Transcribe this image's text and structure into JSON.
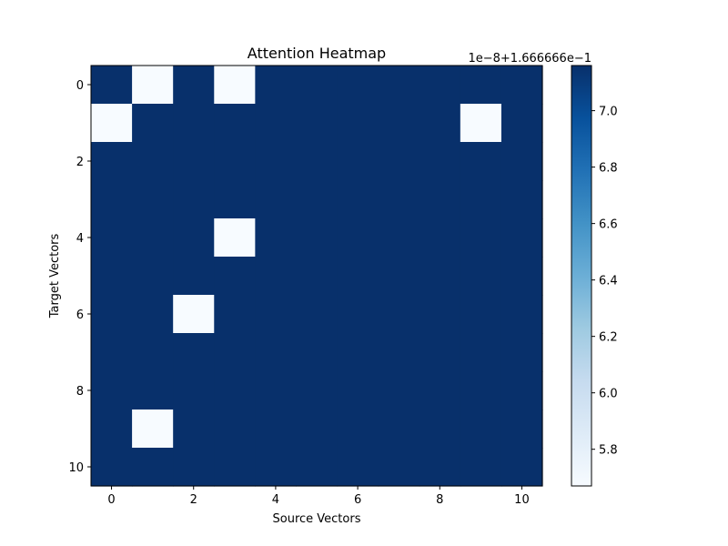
{
  "chart_data": {
    "type": "heatmap",
    "title": "Attention Heatmap",
    "xlabel": "Source Vectors",
    "ylabel": "Target Vectors",
    "x_ticks": [
      "0",
      "2",
      "4",
      "6",
      "8",
      "10"
    ],
    "y_ticks": [
      "0",
      "2",
      "4",
      "6",
      "8",
      "10"
    ],
    "colormap": "Blues",
    "colorbar": {
      "offset_label": "1e−8+1.666666e−1",
      "ticks": [
        "5.8",
        "6.0",
        "6.2",
        "6.4",
        "6.6",
        "6.8",
        "7.0"
      ],
      "range": [
        5.67,
        7.16
      ]
    },
    "grid": false,
    "rows": 11,
    "cols": 11,
    "low_value": 5.67,
    "high_value": 7.16,
    "low_cells": [
      [
        0,
        1
      ],
      [
        0,
        3
      ],
      [
        1,
        0
      ],
      [
        1,
        9
      ],
      [
        4,
        3
      ],
      [
        6,
        2
      ],
      [
        9,
        1
      ]
    ],
    "colors": {
      "low": "#f7fbff",
      "high": "#08306b"
    }
  }
}
